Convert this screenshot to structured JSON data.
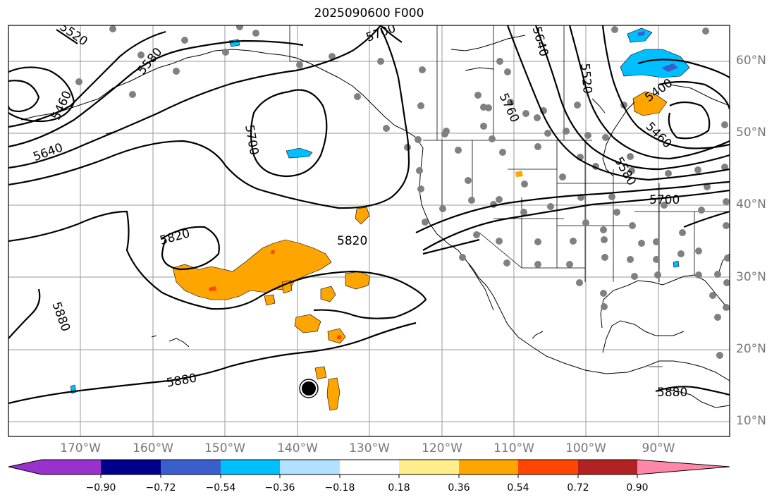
{
  "title": "2025090600 F000",
  "latitude_labels": [
    {
      "text": "60°N",
      "value": 60
    },
    {
      "text": "50°N",
      "value": 50
    },
    {
      "text": "40°N",
      "value": 40
    },
    {
      "text": "30°N",
      "value": 30
    },
    {
      "text": "20°N",
      "value": 20
    },
    {
      "text": "10°N",
      "value": 10
    }
  ],
  "longitude_labels": [
    {
      "text": "170°W",
      "value": -170
    },
    {
      "text": "160°W",
      "value": -160
    },
    {
      "text": "150°W",
      "value": -150
    },
    {
      "text": "140°W",
      "value": -140
    },
    {
      "text": "130°W",
      "value": -130
    },
    {
      "text": "120°W",
      "value": -120
    },
    {
      "text": "110°W",
      "value": -110
    },
    {
      "text": "100°W",
      "value": -100
    },
    {
      "text": "90°W",
      "value": -90
    }
  ],
  "contour_labels": [
    {
      "text": "5520"
    },
    {
      "text": "5580"
    },
    {
      "text": "5460"
    },
    {
      "text": "5640"
    },
    {
      "text": "5700"
    },
    {
      "text": "5700"
    },
    {
      "text": "5760"
    },
    {
      "text": "5520"
    },
    {
      "text": "5400"
    },
    {
      "text": "5460"
    },
    {
      "text": "5580"
    },
    {
      "text": "5700"
    },
    {
      "text": "5820"
    },
    {
      "text": "5820"
    },
    {
      "text": "5880"
    },
    {
      "text": "5880"
    },
    {
      "text": "5880"
    },
    {
      "text": "5640"
    }
  ],
  "colorbar": {
    "ticks": [
      "−0.90",
      "−0.72",
      "−0.54",
      "−0.36",
      "−0.18",
      "0.18",
      "0.36",
      "0.54",
      "0.72",
      "0.90"
    ],
    "colors": [
      "#9932cc",
      "#00008b",
      "#3a5fcd",
      "#00bfff",
      "#b0e2ff",
      "#ffffff",
      "#ffec8b",
      "#ffa500",
      "#ff4500",
      "#b22222",
      "#ff88aa"
    ]
  },
  "colors": {
    "positive_fill": "#ffa500",
    "positive_core": "#ff4500",
    "negative_fill": "#00bfff",
    "negative_core": "#3a5fcd",
    "station_dot": "#808080",
    "grid": "#9a9a9a"
  }
}
